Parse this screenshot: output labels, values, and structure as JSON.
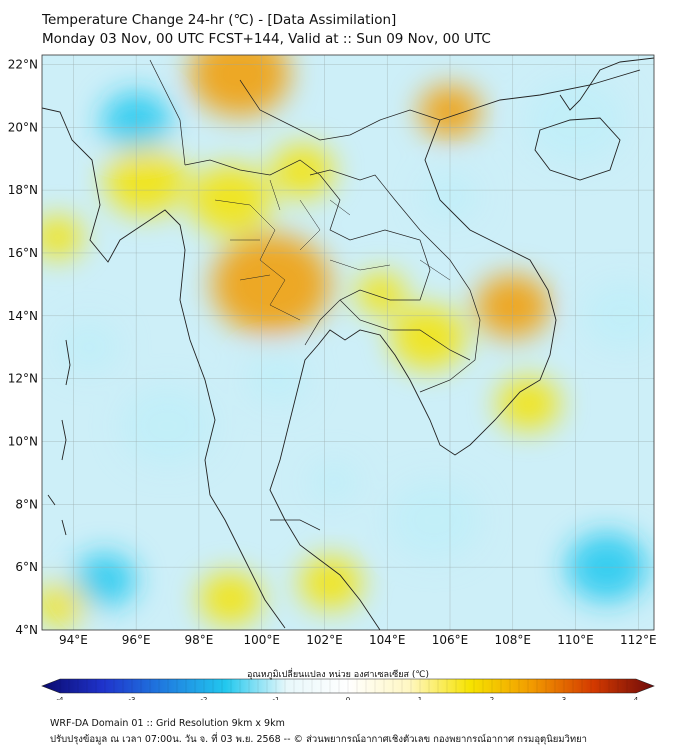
{
  "header": {
    "title_line1": "Temperature Change 24-hr (℃) - [Data Assimilation]",
    "title_line2": "Monday 03 Nov, 00 UTC FCST+144, Valid at :: Sun 09 Nov, 00 UTC"
  },
  "map": {
    "lon_range": [
      93,
      112.5
    ],
    "lat_range": [
      4,
      22.3
    ],
    "lon_ticks": [
      {
        "value": 94,
        "label": "94°E"
      },
      {
        "value": 96,
        "label": "96°E"
      },
      {
        "value": 98,
        "label": "98°E"
      },
      {
        "value": 100,
        "label": "100°E"
      },
      {
        "value": 102,
        "label": "102°E"
      },
      {
        "value": 104,
        "label": "104°E"
      },
      {
        "value": 106,
        "label": "106°E"
      },
      {
        "value": 108,
        "label": "108°E"
      },
      {
        "value": 110,
        "label": "110°E"
      },
      {
        "value": 112,
        "label": "112°E"
      }
    ],
    "lat_ticks": [
      {
        "value": 22,
        "label": "22°N"
      },
      {
        "value": 20,
        "label": "20°N"
      },
      {
        "value": 18,
        "label": "18°N"
      },
      {
        "value": 16,
        "label": "16°N"
      },
      {
        "value": 14,
        "label": "14°N"
      },
      {
        "value": 12,
        "label": "12°N"
      },
      {
        "value": 10,
        "label": "10°N"
      },
      {
        "value": 8,
        "label": "8°N"
      },
      {
        "value": 6,
        "label": "6°N"
      },
      {
        "value": 4,
        "label": "4°N"
      }
    ],
    "warm_blobs": [
      {
        "lon": 99.3,
        "lat": 21.7,
        "r": 1.6,
        "level": 1.3
      },
      {
        "lon": 100.3,
        "lat": 15.0,
        "r": 1.9,
        "level": 0.9
      },
      {
        "lon": 99.0,
        "lat": 17.7,
        "r": 1.3,
        "level": 0.8
      },
      {
        "lon": 101.3,
        "lat": 18.6,
        "r": 1.0,
        "level": 0.7
      },
      {
        "lon": 106.0,
        "lat": 20.5,
        "r": 1.0,
        "level": 1.0
      },
      {
        "lon": 108.0,
        "lat": 14.3,
        "r": 1.2,
        "level": 1.0
      },
      {
        "lon": 105.3,
        "lat": 13.3,
        "r": 1.2,
        "level": 0.8
      },
      {
        "lon": 108.5,
        "lat": 11.2,
        "r": 1.0,
        "level": 0.6
      },
      {
        "lon": 96.3,
        "lat": 18.3,
        "r": 1.3,
        "level": 0.5
      },
      {
        "lon": 93.5,
        "lat": 16.5,
        "r": 0.8,
        "level": 0.5
      },
      {
        "lon": 93.6,
        "lat": 4.8,
        "r": 0.8,
        "level": 0.7
      },
      {
        "lon": 99.0,
        "lat": 5.0,
        "r": 1.0,
        "level": 0.7
      },
      {
        "lon": 102.2,
        "lat": 5.5,
        "r": 1.0,
        "level": 0.5
      },
      {
        "lon": 103.8,
        "lat": 14.7,
        "r": 0.8,
        "level": 0.4
      }
    ],
    "cool_blobs": [
      {
        "lon": 96.0,
        "lat": 20.2,
        "r": 1.1,
        "level": -1.1
      },
      {
        "lon": 110.0,
        "lat": 20.2,
        "r": 1.6,
        "level": -0.9
      },
      {
        "lon": 106.0,
        "lat": 17.8,
        "r": 0.9,
        "level": -0.7
      },
      {
        "lon": 111.5,
        "lat": 14.0,
        "r": 1.3,
        "level": -0.9
      },
      {
        "lon": 97.0,
        "lat": 10.5,
        "r": 1.5,
        "level": -0.9
      },
      {
        "lon": 95.0,
        "lat": 5.6,
        "r": 1.0,
        "level": -1.1
      },
      {
        "lon": 111.0,
        "lat": 6.0,
        "r": 1.3,
        "level": -1.0
      },
      {
        "lon": 105.5,
        "lat": 7.5,
        "r": 1.5,
        "level": -0.8
      },
      {
        "lon": 100.5,
        "lat": 12.0,
        "r": 1.0,
        "level": -0.8
      },
      {
        "lon": 94.5,
        "lat": 13.0,
        "r": 1.0,
        "level": -0.6
      },
      {
        "lon": 102.3,
        "lat": 8.7,
        "r": 0.8,
        "level": -0.6
      }
    ]
  },
  "colorbar": {
    "label": "อุณหภูมิเปลี่ยนแปลง หน่วย องศาเซลเซียส (℃)",
    "min": -4,
    "max": 4,
    "ticks": [
      {
        "value": -4,
        "label": "-4"
      },
      {
        "value": -3,
        "label": "-3"
      },
      {
        "value": -2,
        "label": "-2"
      },
      {
        "value": -1,
        "label": "-1"
      },
      {
        "value": 0,
        "label": "0"
      },
      {
        "value": 1,
        "label": "1"
      },
      {
        "value": 2,
        "label": "2"
      },
      {
        "value": 3,
        "label": "3"
      },
      {
        "value": 4,
        "label": "4"
      }
    ],
    "colors": [
      "#0a0a6e",
      "#1f33cc",
      "#1f7de0",
      "#22c8ee",
      "#e8f8fb",
      "#ffffff",
      "#fff7c2",
      "#f6e300",
      "#f29b00",
      "#d43a00",
      "#6e0a0a"
    ]
  },
  "footer": {
    "line1": "WRF-DA Domain 01 :: Grid Resolution 9km x 9km",
    "line2": "ปรับปรุงข้อมูล ณ เวลา 07:00น. วัน จ. ที่ 03 พ.ย. 2568 -- © ส่วนพยากรณ์อากาศเชิงตัวเลข กองพยากรณ์อากาศ กรมอุตุนิยมวิทยา"
  }
}
